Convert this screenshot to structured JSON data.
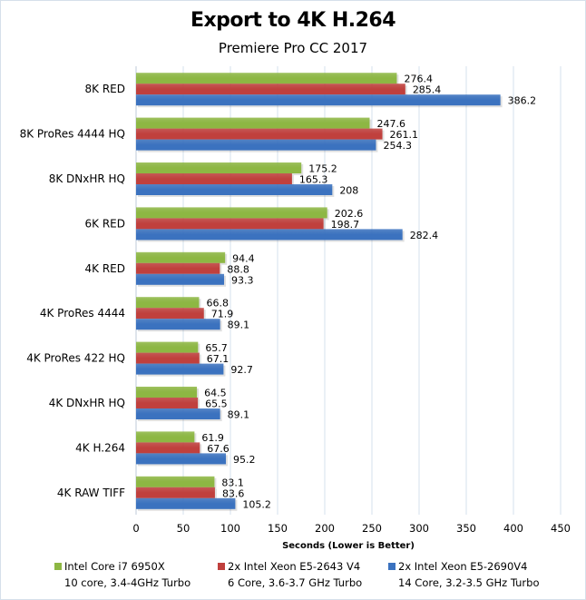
{
  "chart_data": {
    "type": "bar",
    "orientation": "horizontal",
    "title": "Export to 4K H.264",
    "subtitle": "Premiere Pro CC 2017",
    "xlabel": "Seconds (Lower is Better)",
    "ylabel": "",
    "xlim": [
      0,
      450
    ],
    "xticks": [
      0,
      50,
      100,
      150,
      200,
      250,
      300,
      350,
      400,
      450
    ],
    "grid": true,
    "legend_position": "bottom",
    "categories": [
      "8K RED",
      "8K ProRes 4444 HQ",
      "8K DNxHR HQ",
      "6K RED",
      "4K RED",
      "4K ProRes 4444",
      "4K ProRes 422 HQ",
      "4K DNxHR HQ",
      "4K H.264",
      "4K RAW TIFF"
    ],
    "series": [
      {
        "name": "Intel Core i7 6950X",
        "detail": "10 core, 3.4-4GHz Turbo",
        "color": "#8db743",
        "values": [
          276.4,
          247.6,
          175.2,
          202.6,
          94.4,
          66.8,
          65.7,
          64.5,
          61.9,
          83.1
        ],
        "labels": [
          "276.4",
          "247.6",
          "175.2",
          "202.6",
          "94.4",
          "66.8",
          "65.7",
          "64.5",
          "61.9",
          "83.1"
        ]
      },
      {
        "name": "2x Intel Xeon E5-2643 V4",
        "detail": "6 Core, 3.6-3.7 GHz Turbo",
        "color": "#c0403d",
        "values": [
          285.4,
          261.1,
          165.3,
          198.7,
          88.8,
          71.9,
          67.1,
          65.5,
          67.6,
          83.6
        ],
        "labels": [
          "285.4",
          "261.1",
          "165.3",
          "198.7",
          "88.8",
          "71.9",
          "67.1",
          "65.5",
          "67.6",
          "83.6"
        ]
      },
      {
        "name": "2x Intel Xeon E5-2690V4",
        "detail": "14 Core, 3.2-3.5 GHz Turbo",
        "color": "#3b72bf",
        "values": [
          386.2,
          254.3,
          208,
          282.4,
          93.3,
          89.1,
          92.7,
          89.1,
          95.2,
          105.2
        ],
        "labels": [
          "386.2",
          "254.3",
          "208",
          "282.4",
          "93.3",
          "89.1",
          "92.7",
          "89.1",
          "95.2",
          "105.2"
        ]
      }
    ]
  }
}
